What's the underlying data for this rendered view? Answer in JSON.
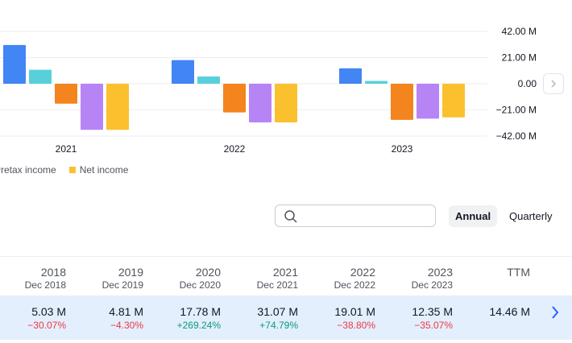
{
  "chart_data": {
    "type": "bar",
    "categories": [
      "2021",
      "2022",
      "2023"
    ],
    "series": [
      {
        "name": "",
        "color": "#4285f4",
        "values": [
          31.07,
          19.01,
          12.35
        ]
      },
      {
        "name": "",
        "color": "#58d0dc",
        "values": [
          11.2,
          5.8,
          2.3
        ]
      },
      {
        "name": "",
        "color": "#f3841e",
        "values": [
          -16.0,
          -23.0,
          -29.0
        ]
      },
      {
        "name": "Pretax income",
        "color": "#b784f5",
        "values": [
          -37.0,
          -31.0,
          -28.0
        ]
      },
      {
        "name": "Net income",
        "color": "#fbc02d",
        "values": [
          -37.0,
          -31.0,
          -27.0
        ]
      }
    ],
    "ylim": [
      -42,
      42
    ],
    "y_ticks": [
      "42.00 M",
      "21.00 M",
      "0.00",
      "−21.00 M",
      "−42.00 M"
    ],
    "grid": true,
    "legend_placement": "bottom-left"
  },
  "legend": {
    "items": [
      {
        "label": "Pretax income",
        "color": "#b784f5"
      },
      {
        "label": "Net income",
        "color": "#fbc02d"
      }
    ]
  },
  "search": {
    "placeholder": "",
    "value": ""
  },
  "period_toggle": {
    "annual": "Annual",
    "quarterly": "Quarterly"
  },
  "table": {
    "columns": [
      {
        "year": "2018",
        "period": "Dec 2018"
      },
      {
        "year": "2019",
        "period": "Dec 2019"
      },
      {
        "year": "2020",
        "period": "Dec 2020"
      },
      {
        "year": "2021",
        "period": "Dec 2021"
      },
      {
        "year": "2022",
        "period": "Dec 2022"
      },
      {
        "year": "2023",
        "period": "Dec 2023"
      },
      {
        "year": "TTM",
        "period": ""
      }
    ],
    "row": {
      "values": [
        "5.03 M",
        "4.81 M",
        "17.78 M",
        "31.07 M",
        "19.01 M",
        "12.35 M",
        "14.46 M"
      ],
      "changes": [
        "−30.07%",
        "−4.30%",
        "+269.24%",
        "+74.79%",
        "−38.80%",
        "−35.07%",
        ""
      ]
    }
  },
  "icons": {
    "search": "search-icon",
    "chart_scroll": "chevron-right-icon",
    "row_expand": "chevron-right-icon"
  },
  "colors": {
    "positive": "#089981",
    "negative": "#f23645",
    "row_highlight": "#e3effd",
    "accent": "#2962ff"
  }
}
